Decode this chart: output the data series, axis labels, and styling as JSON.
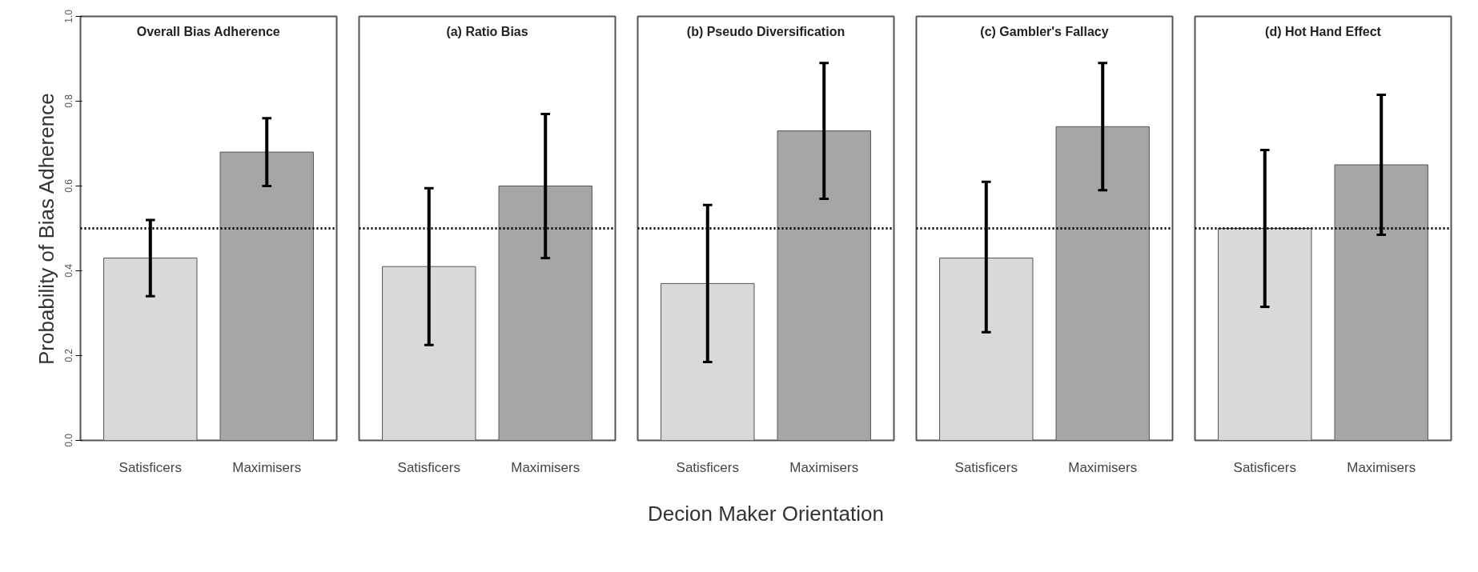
{
  "chart_data": [
    {
      "type": "bar",
      "title": "Overall Bias Adherence",
      "ylabel": "Probability of Bias Adherence",
      "categories": [
        "Satisficers",
        "Maximisers"
      ],
      "values": [
        0.43,
        0.68
      ],
      "colors": [
        "#d9d9d9",
        "#a6a6a6"
      ],
      "errors": [
        [
          0.34,
          0.52
        ],
        [
          0.6,
          0.76
        ]
      ],
      "ylim": [
        0,
        1.0
      ],
      "yticks": [
        {
          "value": 0,
          "label": "0.0"
        },
        {
          "value": 0.2,
          "label": "0.2"
        },
        {
          "value": 0.4,
          "label": "0.4"
        },
        {
          "value": 0.6,
          "label": "0.6"
        },
        {
          "value": 0.8,
          "label": "0.8"
        },
        {
          "value": 1.0,
          "label": "1.0"
        }
      ],
      "ref_lines": [
        {
          "axis": "y",
          "value": 0.5,
          "line_style": "dotted"
        }
      ],
      "grid": false
    },
    {
      "type": "bar",
      "title": "(a) Ratio Bias",
      "categories": [
        "Satisficers",
        "Maximisers"
      ],
      "values": [
        0.41,
        0.6
      ],
      "colors": [
        "#d9d9d9",
        "#a6a6a6"
      ],
      "errors": [
        [
          0.225,
          0.595
        ],
        [
          0.43,
          0.77
        ]
      ],
      "ylim": [
        0,
        1.0
      ],
      "tick_labels": "x",
      "ref_lines": [
        {
          "axis": "y",
          "value": 0.5,
          "line_style": "dotted"
        }
      ],
      "grid": false
    },
    {
      "type": "bar",
      "title": "(b) Pseudo Diversification",
      "xlabel": "Decion Maker Orientation",
      "categories": [
        "Satisficers",
        "Maximisers"
      ],
      "values": [
        0.37,
        0.73
      ],
      "colors": [
        "#d9d9d9",
        "#a6a6a6"
      ],
      "errors": [
        [
          0.185,
          0.555
        ],
        [
          0.57,
          0.89
        ]
      ],
      "ylim": [
        0,
        1.0
      ],
      "tick_labels": "x",
      "ref_lines": [
        {
          "axis": "y",
          "value": 0.5,
          "line_style": "dotted"
        }
      ],
      "grid": false
    },
    {
      "type": "bar",
      "title": "(c) Gambler's Fallacy",
      "categories": [
        "Satisficers",
        "Maximisers"
      ],
      "values": [
        0.43,
        0.74
      ],
      "colors": [
        "#d9d9d9",
        "#a6a6a6"
      ],
      "errors": [
        [
          0.255,
          0.61
        ],
        [
          0.59,
          0.89
        ]
      ],
      "ylim": [
        0,
        1.0
      ],
      "tick_labels": "x",
      "ref_lines": [
        {
          "axis": "y",
          "value": 0.5,
          "line_style": "dotted"
        }
      ],
      "grid": false
    },
    {
      "type": "bar",
      "title": "(d) Hot Hand Effect",
      "categories": [
        "Satisficers",
        "Maximisers"
      ],
      "values": [
        0.5,
        0.65
      ],
      "colors": [
        "#d9d9d9",
        "#a6a6a6"
      ],
      "errors": [
        [
          0.315,
          0.685
        ],
        [
          0.485,
          0.815
        ]
      ],
      "ylim": [
        0,
        1.0
      ],
      "tick_labels": "x",
      "ref_lines": [
        {
          "axis": "y",
          "value": 0.5,
          "line_style": "dotted"
        }
      ],
      "grid": false
    }
  ]
}
